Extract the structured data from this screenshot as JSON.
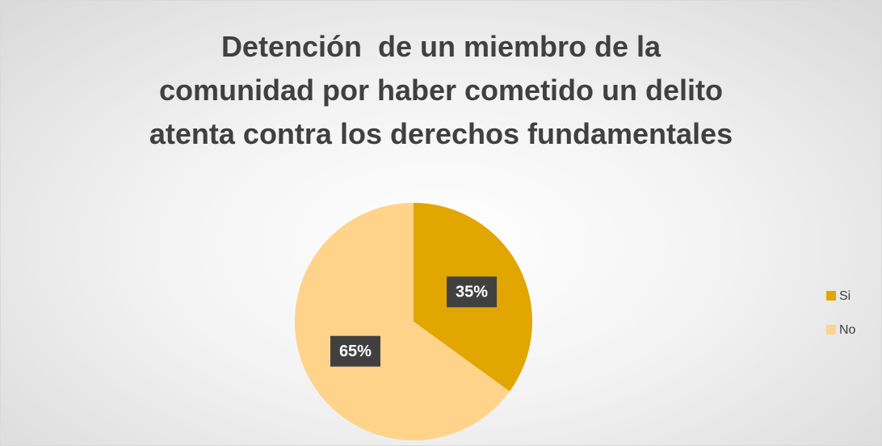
{
  "chart_data": {
    "type": "pie",
    "title": "Detención  de un miembro de la\ncomunidad por haber cometido un delito\natenta contra los derechos fundamentales",
    "categories": [
      "Si",
      "No"
    ],
    "values": [
      35,
      65
    ],
    "value_labels": [
      "35%",
      "65%"
    ],
    "colors": [
      "#e2a600",
      "#ffd38a"
    ],
    "legend": "right"
  }
}
